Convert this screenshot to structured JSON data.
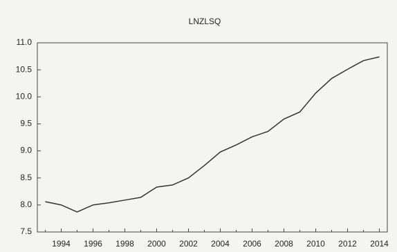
{
  "chart_data": {
    "type": "line",
    "title": "LNZLSQ",
    "categories": [
      null,
      "1994",
      null,
      "1996",
      null,
      "1998",
      null,
      "2000",
      null,
      "2002",
      null,
      "2004",
      null,
      "2006",
      null,
      "2008",
      null,
      "2010",
      null,
      "2012",
      null,
      "2014"
    ],
    "values": [
      8.06,
      8.0,
      7.87,
      8.0,
      8.04,
      8.09,
      8.14,
      8.33,
      8.37,
      8.5,
      8.73,
      8.98,
      9.11,
      9.26,
      9.36,
      9.59,
      9.72,
      10.07,
      10.34,
      10.51,
      10.67,
      10.74
    ],
    "color": "#333333",
    "ylim": [
      7.5,
      11.0
    ],
    "yticks": [
      7.5,
      {
        "value": 8,
        "label": "8.0"
      },
      8.5,
      {
        "value": 9,
        "label": "9.0"
      },
      9.5,
      {
        "value": 10,
        "label": "10.0"
      },
      10.5,
      {
        "value": 11,
        "label": "11.0"
      }
    ],
    "grid": false
  }
}
